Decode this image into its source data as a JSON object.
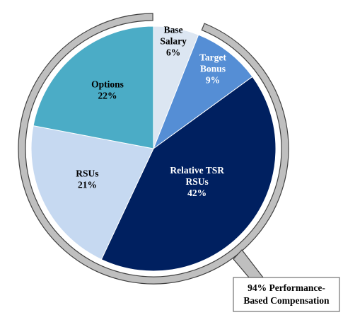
{
  "chart_data": {
    "type": "pie",
    "categories": [
      [
        "Base",
        "Salary"
      ],
      [
        "Target",
        "Bonus"
      ],
      [
        "Relative TSR",
        "RSUs"
      ],
      [
        "RSUs"
      ],
      [
        "Options"
      ]
    ],
    "values": [
      6,
      9,
      42,
      21,
      22
    ],
    "value_labels": [
      "6%",
      "9%",
      "42%",
      "21%",
      "22%"
    ],
    "colors": [
      "#dce6f2",
      "#558ed5",
      "#002060",
      "#c6d9f1",
      "#4bacc6"
    ],
    "label_colors": [
      "#000000",
      "#ffffff",
      "#ffffff",
      "#000000",
      "#000000"
    ],
    "annotation": [
      "94% Performance-",
      "Based Compensation"
    ]
  }
}
